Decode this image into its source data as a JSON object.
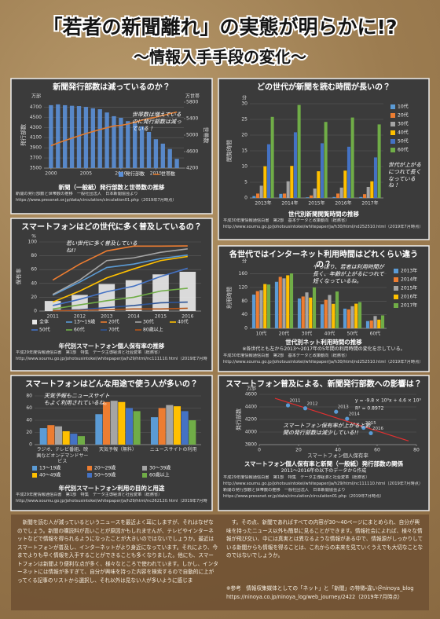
{
  "title": "「若者の新聞離れ」の実態が明らかに!?",
  "subtitle": "〜情報入手手段の変化〜",
  "chart_data": [
    {
      "type": "bar_line",
      "title": "新聞発行部数は減っているのか？",
      "x": [
        2000,
        2001,
        2002,
        2003,
        2004,
        2005,
        2006,
        2007,
        2008,
        2009,
        2010,
        2011,
        2012,
        2013,
        2014,
        2015,
        2016,
        2017,
        2018
      ],
      "xlim": [
        1999,
        2019
      ],
      "xticks": [
        2000,
        2005,
        2010,
        2015
      ],
      "series": [
        {
          "name": "発行部数",
          "kind": "bar",
          "color": "#5b8fd6",
          "values": [
            4740,
            4756,
            4739,
            4728,
            4722,
            4705,
            4679,
            4660,
            4596,
            4523,
            4491,
            4425,
            4378,
            4323,
            4212,
            4069,
            3982,
            3876,
            3682
          ]
        },
        {
          "name": "世帯数",
          "kind": "line",
          "axis": "y2",
          "color": "#e07a2e",
          "values": [
            4742,
            4809,
            4869,
            4926,
            4984,
            5038,
            5087,
            5135,
            5179,
            5223,
            5236,
            5269,
            5313,
            5362,
            5405,
            5436,
            5478,
            5522,
            5560
          ]
        }
      ],
      "ylim": [
        3500,
        4800
      ],
      "yticks": [
        3500,
        3700,
        3900,
        4100,
        4300,
        4500,
        4700
      ],
      "y2lim": [
        4200,
        5800
      ],
      "y2ticks": [
        4200,
        4600,
        5000,
        5400,
        5800
      ],
      "ylabel": "発行部数",
      "yunit": "万部",
      "y2label": "世帯数",
      "y2unit": "万世帯",
      "grid": true,
      "legend": "bottom",
      "annotation": "世帯数は増えているのに発行部数は減っている！",
      "caption": "新聞（一般紙）発行部数と世帯数の推移",
      "sources": [
        "新聞の発行部数と世帯数の推移　一般社団法人　日本新聞協会より",
        "https://www.pressnet.or.jp/data/circulation/circulation01.php（2019年7月時点）"
      ]
    },
    {
      "type": "bar",
      "title": "どの世代が新聞を読む時間が長いの？",
      "categories": [
        "2013年",
        "2014年",
        "2015年",
        "2016年",
        "2017年"
      ],
      "series": [
        {
          "name": "10代",
          "color": "#5b9bd5",
          "values": [
            0.6,
            1.3,
            0.2,
            0.3,
            0.3
          ]
        },
        {
          "name": "20代",
          "color": "#ed7d31",
          "values": [
            1.4,
            1.4,
            0.8,
            1.4,
            1.2
          ]
        },
        {
          "name": "30代",
          "color": "#a5a5a5",
          "values": [
            3.9,
            5.3,
            3.0,
            3.3,
            3.5
          ]
        },
        {
          "name": "40代",
          "color": "#ffc000",
          "values": [
            10.1,
            10.2,
            8.5,
            8.7,
            5.3
          ]
        },
        {
          "name": "50代",
          "color": "#4472c4",
          "values": [
            17.1,
            20.9,
            17.4,
            16.3,
            12.9
          ]
        },
        {
          "name": "60代",
          "color": "#70ad47",
          "values": [
            25.8,
            29.6,
            24.2,
            25.6,
            23.4
          ]
        }
      ],
      "ylim": [
        0,
        30
      ],
      "yticks": [
        0,
        5,
        10,
        15,
        20,
        25,
        30
      ],
      "ylabel": "閲覧時間",
      "yunit": "分",
      "grid": true,
      "legend": "right",
      "annotation": "世代が上がるにつれて長くなっているね！",
      "caption": "世代別新聞閲覧時間の推移",
      "sources": [
        "平成30年度情報通信白書　第2部　基本データと政策動向（総務省）",
        "http://www.soumu.go.jp/johotsusintokei/whitepaper/ja/h30/html/nd252510.html（2019年7月時点）"
      ]
    },
    {
      "type": "bar_line",
      "title": "スマートフォンはどの世代に多く普及しているの？",
      "categories": [
        "2011",
        "2012",
        "2013",
        "2014",
        "2015",
        "2016"
      ],
      "series": [
        {
          "name": "全体",
          "kind": "bar",
          "color": "#e8e8e8",
          "values": [
            14.6,
            23.4,
            39.1,
            44.7,
            53.1,
            56.8
          ]
        },
        {
          "name": "13～19歳",
          "kind": "line",
          "color": "#5b9bd5",
          "values": [
            23,
            42,
            63,
            68,
            76,
            81
          ]
        },
        {
          "name": "20代",
          "kind": "line",
          "color": "#ed7d31",
          "values": [
            44.8,
            68,
            87,
            94,
            94,
            94.2
          ]
        },
        {
          "name": "30代",
          "kind": "line",
          "color": "#a5a5a5",
          "values": [
            24,
            45,
            73,
            77,
            85,
            90
          ]
        },
        {
          "name": "40代",
          "kind": "line",
          "color": "#ffc000",
          "values": [
            13,
            29,
            48,
            61,
            73,
            79
          ]
        },
        {
          "name": "50代",
          "kind": "line",
          "color": "#4472c4",
          "values": [
            8,
            17,
            28,
            36,
            50,
            62
          ]
        },
        {
          "name": "60代",
          "kind": "line",
          "color": "#70ad47",
          "values": [
            3,
            9,
            15,
            20,
            29,
            33
          ]
        },
        {
          "name": "70代",
          "kind": "line",
          "color": "#2f5597",
          "values": [
            1,
            2,
            5,
            8,
            12,
            13
          ]
        },
        {
          "name": "80歳以上",
          "kind": "line",
          "color": "#b4561a",
          "values": [
            0.5,
            1,
            2,
            3,
            3,
            4
          ]
        }
      ],
      "ylim": [
        0,
        100
      ],
      "yticks": [
        0,
        20,
        40,
        60,
        80,
        100
      ],
      "ylabel": "保有率",
      "yunit": "%",
      "grid": true,
      "legend": "bottom",
      "annotation": "若い世代に多く普及しているね!!",
      "caption": "年代別スマートフォン個人保有率の推移",
      "sources": [
        "平成29年度情報通信白書　第1部　特集　データ主導経済と社会変革（総務省）",
        "http://www.soumu.go.jp/johotsusintokei/whitepaper/ja/h29/html/nc111110.html（2019年7月時点）"
      ]
    },
    {
      "type": "bar",
      "title": "各世代ではインターネット利用時間はどれくらい違うの？",
      "categories": [
        "10代",
        "20代",
        "30代",
        "40代",
        "50代",
        "60代"
      ],
      "series": [
        {
          "name": "2013年",
          "color": "#5b9bd5",
          "values": [
            99.1,
            136.7,
            87.8,
            70.8,
            57.9,
            21.4
          ]
        },
        {
          "name": "2014年",
          "color": "#ed7d31",
          "values": [
            109.3,
            151.3,
            93.6,
            83.9,
            55.7,
            23.1
          ]
        },
        {
          "name": "2015年",
          "color": "#a5a5a5",
          "values": [
            112.2,
            146.9,
            105.6,
            98.0,
            65.0,
            36.2
          ]
        },
        {
          "name": "2016年",
          "color": "#ffc000",
          "values": [
            130.2,
            155.9,
            90.4,
            72.0,
            72.5,
            25.6
          ]
        },
        {
          "name": "2017年",
          "color": "#70ad47",
          "values": [
            128.8,
            161.4,
            120.4,
            108.3,
            77.1,
            38.1
          ]
        }
      ],
      "ylim": [
        0,
        180
      ],
      "yticks": [
        0,
        40,
        80,
        120,
        160
      ],
      "ylabel": "利用時間",
      "yunit": "分",
      "grid": true,
      "legend": "right",
      "annotation": "やっぱり、若者は利用時間が長く、年齢が上がるにつれて短くなっているね。",
      "caption": "世代別ネット利用時間の推移",
      "note": "※各世代とも左から2013～2017年の5年間の利用時間の変化を示している。",
      "sources": [
        "平成30年度情報通信白書　第2部　基本データと政策動向（総務省）",
        "http://www.soumu.go.jp/johotsusintokei/whitepaper/ja/h30/html/nd252510.html（2019年7月時点）"
      ]
    },
    {
      "type": "bar",
      "title": "スマートフォンはどんな用途で使う人が多いの？",
      "categories": [
        "ラジオ、テレビ番組、映画などオンデマンドサービス",
        "天気予報（無料）",
        "ニュースサイトの利用"
      ],
      "series": [
        {
          "name": "13～19歳",
          "color": "#5b9bd5",
          "values": [
            27,
            50,
            45
          ]
        },
        {
          "name": "20～29歳",
          "color": "#ed7d31",
          "values": [
            32,
            70,
            60
          ]
        },
        {
          "name": "30～39歳",
          "color": "#a5a5a5",
          "values": [
            30,
            72,
            65
          ]
        },
        {
          "name": "40～49歳",
          "color": "#ffc000",
          "values": [
            22,
            70,
            63
          ]
        },
        {
          "name": "50～59歳",
          "color": "#4472c4",
          "values": [
            18,
            60,
            55
          ]
        },
        {
          "name": "60歳以上",
          "color": "#70ad47",
          "values": [
            14,
            55,
            40
          ]
        }
      ],
      "ylim": [
        0,
        80
      ],
      "yticks": [
        0,
        20,
        40,
        60,
        80
      ],
      "grid": true,
      "legend": "bottom",
      "annotation": "天気予報もニュースサイトもよく利用されているね。",
      "caption": "年代別スマートフォン利用の目的と用途",
      "sources": [
        "平成29年度情報通信白書　第1部　特集　データ主導経済と社会変革（総務省）",
        "http://www.soumu.go.jp/johotsusintokei/whitepaper/ja/h29/html/nc262120.html（2019年7月時点）"
      ]
    },
    {
      "type": "scatter",
      "title": "スマートフォン普及による、新聞発行部数への影響は？",
      "x": [
        14.6,
        23.4,
        39.1,
        44.7,
        53.1,
        56.8
      ],
      "values": [
        4425,
        4378,
        4323,
        4212,
        4069,
        3982
      ],
      "labels": [
        "2011",
        "2012",
        "2013",
        "2014",
        "2015",
        "2016"
      ],
      "color": "#5b9bd5",
      "trend_color": "#e03030",
      "xlim": [
        0,
        80
      ],
      "xticks": [
        0,
        20,
        40,
        60,
        80
      ],
      "ylim": [
        3800,
        4600
      ],
      "yticks": [
        3800,
        4000,
        4200,
        4400,
        4600
      ],
      "xlabel": "スマートフォン個人保有率",
      "ylabel": "発行部数",
      "yunit": "万部",
      "grid": true,
      "equation": "y = -9.8 × 10⁰x + 4.6 × 10³",
      "r_squared": "R² = 0.8972",
      "annotation": "スマートフォン保有率が上がると新聞の発行部数は減少している!!",
      "caption": "スマートフォン個人保有率と新聞（一般紙）発行部数の関係",
      "subcaption": "2011～2016年の以下のデータから作成",
      "sources": [
        "平成29年度情報通信白書　第1部　特集　データ主導経済と社会変革（総務省）",
        "http://www.soumu.go.jp/johotsusintokei/whitepaper/ja/h29/html/nc111110.html（2019年7月時点）",
        "新聞の発行部数と世帯数の推移　一般社団法人　日本新聞協会より",
        "https://www.pressnet.or.jp/data/circulation/circulation01.php（2019年7月時点）"
      ]
    }
  ],
  "footer": {
    "left": "新聞を読む人が減っているというニュースを最近よく耳にしますが、それはなぜなのでしょう。新聞の購読料が高いことが原因かもしれませんが、テレビやインターネットなどで情報を得られるようになったことが大きいのではないでしょうか。最近はスマートフォンが普及し、インターネットがより身近になっています。それにより、今までよりも早く情報を入手することができることも多くなりました。他にも、スマートフォンは新聞より便利な点が多く、様々なところで使われています。しかし、インターネットには情報が多すぎて、自分が興味を持った内容を検索するので自動的に上がってくる記事のリストから選択し、それ以外は見ない人が多いように感じま",
    "right": "す。その点、新聞であればすべての内容が30～40ページにまとめられ、自分が興味を持ったニュース以外も簡単に見ることができます。情報社会によれば、様々な情報が飛び交い、中には真実とは異なるような情報がある中で、情報源がしっかりしている新聞からも情報を得ることは、これからの未来を見ていくうえでも大切なことなのではないでしょうか。",
    "reference": "※参考　情報収集媒体としての「ネット」と「新聞」の特徴・違い＠ninoya_blog https://ninoya.co.jp/ninoya_log/web_journey/2422（2019年7月時点）"
  }
}
